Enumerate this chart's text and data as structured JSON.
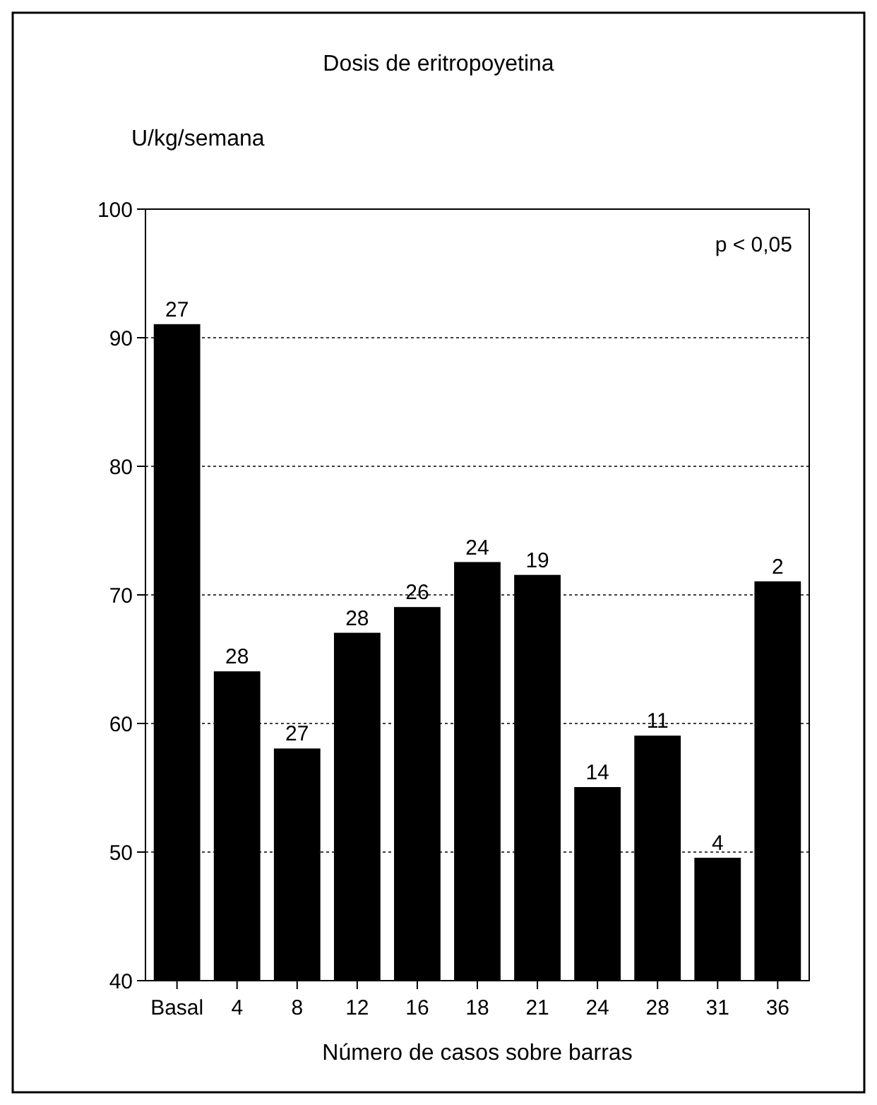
{
  "chart_data": {
    "type": "bar",
    "title": "Dosis de eritropoyetina",
    "ylabel": "U/kg/semana",
    "xlabel": "Número de casos sobre barras",
    "categories": [
      "Basal",
      "4",
      "8",
      "12",
      "16",
      "18",
      "21",
      "24",
      "28",
      "31",
      "36"
    ],
    "values": [
      91,
      64,
      58,
      67,
      69,
      72.5,
      71.5,
      55,
      59,
      49.5,
      71
    ],
    "color": "#000000",
    "ylim": [
      40,
      100
    ],
    "yticks": [
      40,
      50,
      60,
      70,
      80,
      90,
      100
    ],
    "grid": "y",
    "annotations": [
      "p < 0,05",
      {
        "text": "27",
        "x": "Basal",
        "y": 91
      },
      {
        "text": "28",
        "x": "4",
        "y": 64
      },
      {
        "text": "27",
        "x": "8",
        "y": 58
      },
      {
        "text": "28",
        "x": "12",
        "y": 67
      },
      {
        "text": "26",
        "x": "16",
        "y": 69
      },
      {
        "text": "24",
        "x": "18",
        "y": 72.5
      },
      {
        "text": "19",
        "x": "21",
        "y": 71.5
      },
      {
        "text": "14",
        "x": "24",
        "y": 55
      },
      {
        "text": "11",
        "x": "28",
        "y": 59
      },
      {
        "text": "4",
        "x": "31",
        "y": 49.5
      },
      {
        "text": "2",
        "x": "36",
        "y": 71
      }
    ]
  }
}
